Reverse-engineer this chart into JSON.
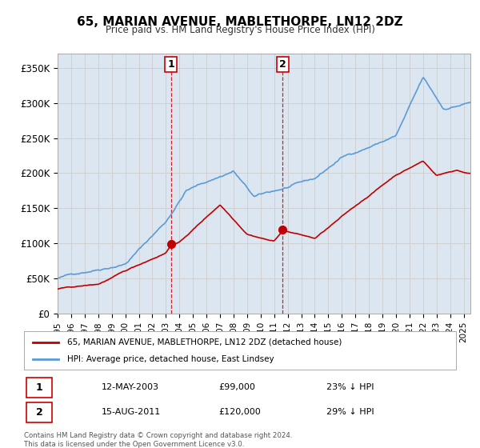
{
  "title": "65, MARIAN AVENUE, MABLETHORPE, LN12 2DZ",
  "subtitle": "Price paid vs. HM Land Registry's House Price Index (HPI)",
  "ylim": [
    0,
    370000
  ],
  "yticks": [
    0,
    50000,
    100000,
    150000,
    200000,
    250000,
    300000,
    350000
  ],
  "ytick_labels": [
    "£0",
    "£50K",
    "£100K",
    "£150K",
    "£200K",
    "£250K",
    "£300K",
    "£350K"
  ],
  "hpi_color": "#5b9bd5",
  "sale_color": "#c00000",
  "vline_color": "#cc0000",
  "bg_color": "#dce6f1",
  "plot_bg": "#ffffff",
  "grid_color": "#cccccc",
  "sale1_year": 2003.37,
  "sale1_price": 99000,
  "sale1_label": "1",
  "sale2_year": 2011.62,
  "sale2_price": 120000,
  "sale2_label": "2",
  "legend_line1": "65, MARIAN AVENUE, MABLETHORPE, LN12 2DZ (detached house)",
  "legend_line2": "HPI: Average price, detached house, East Lindsey",
  "table_row1": [
    "1",
    "12-MAY-2003",
    "£99,000",
    "23% ↓ HPI"
  ],
  "table_row2": [
    "2",
    "15-AUG-2011",
    "£120,000",
    "29% ↓ HPI"
  ],
  "footnote": "Contains HM Land Registry data © Crown copyright and database right 2024.\nThis data is licensed under the Open Government Licence v3.0.",
  "xmin": 1995,
  "xmax": 2025.5
}
